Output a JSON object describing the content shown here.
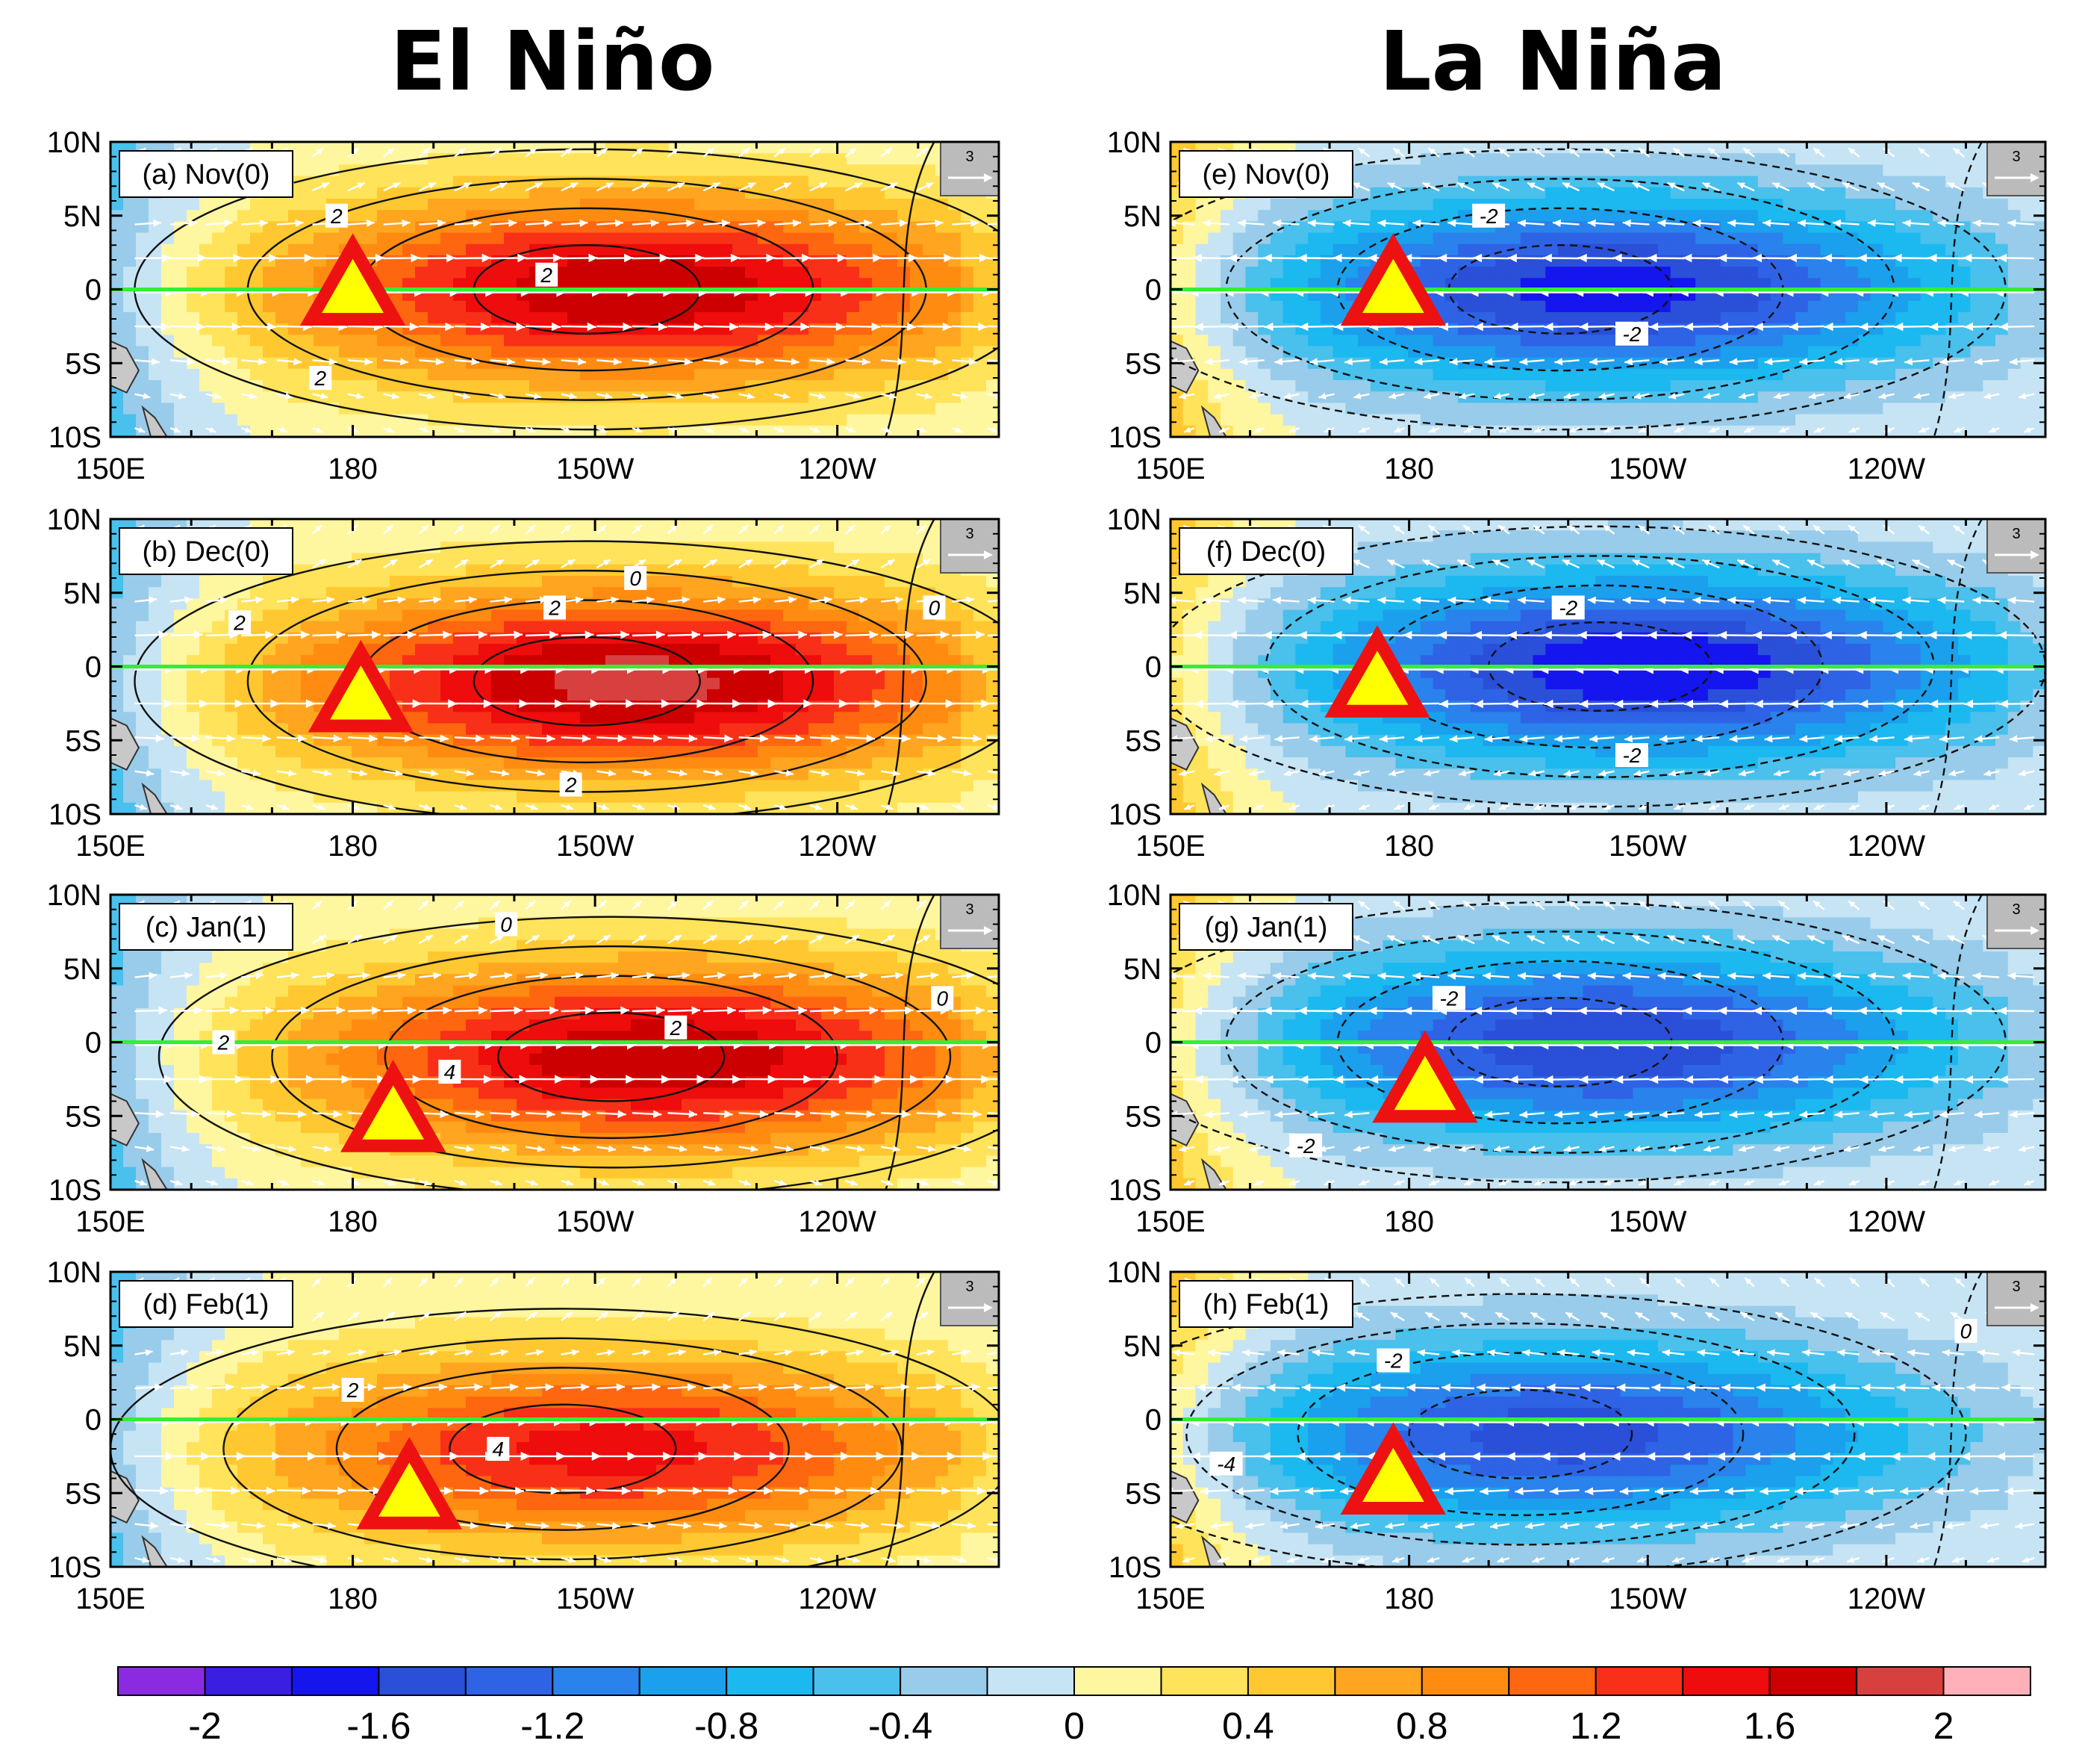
{
  "titles": {
    "left": "El Niño",
    "right": "La Niña"
  },
  "vector_reference": "3",
  "axes": {
    "lat_ticks": [
      "10N",
      "5N",
      "0",
      "5S",
      "10S"
    ],
    "lat_values": [
      10,
      5,
      0,
      -5,
      -10
    ],
    "lon_ticks": [
      "150E",
      "180",
      "150W",
      "120W"
    ],
    "lon_values": [
      150,
      180,
      210,
      240
    ],
    "lon_range": [
      150,
      260
    ],
    "lat_range": [
      -10,
      10
    ]
  },
  "colorbar": {
    "tick_labels": [
      "-2",
      "-1.6",
      "-1.2",
      "-0.8",
      "-0.4",
      "0",
      "0.4",
      "0.8",
      "1.2",
      "1.6",
      "2"
    ],
    "levels": [
      -2,
      -1.8,
      -1.6,
      -1.4,
      -1.2,
      -1.0,
      -0.8,
      -0.6,
      -0.4,
      -0.2,
      0,
      0.2,
      0.4,
      0.6,
      0.8,
      1.0,
      1.2,
      1.4,
      1.6,
      1.8,
      2
    ],
    "colors": [
      "#8a2be2",
      "#3a1fe0",
      "#1515ee",
      "#2a4fd8",
      "#2e63e6",
      "#2a82ec",
      "#1aa0ec",
      "#1cb8f0",
      "#4ac0ec",
      "#98ccea",
      "#c6e4f4",
      "#fff6a0",
      "#ffe35a",
      "#ffc830",
      "#ffa520",
      "#ff8c10",
      "#ff6610",
      "#f83018",
      "#ee0c0c",
      "#cc0000",
      "#d84040",
      "#ffb0b8"
    ]
  },
  "chart_data": [
    {
      "type": "heatmap",
      "id": "a",
      "label": "(a) Nov(0)",
      "phase": "El Niño",
      "triangle": {
        "lon": 180,
        "lat": 0
      },
      "anomaly_center": {
        "lon": 215,
        "lat": 0,
        "peak": 1.8
      },
      "contour_labels": [
        {
          "text": "2",
          "lon": 178,
          "lat": 5
        },
        {
          "text": "2",
          "lon": 204,
          "lat": 1
        },
        {
          "text": "2",
          "lon": 176,
          "lat": -6
        }
      ]
    },
    {
      "type": "heatmap",
      "id": "b",
      "label": "(b) Dec(0)",
      "phase": "El Niño",
      "triangle": {
        "lon": 181,
        "lat": -2
      },
      "anomaly_center": {
        "lon": 215,
        "lat": -1,
        "peak": 1.9
      },
      "contour_labels": [
        {
          "text": "0",
          "lon": 215,
          "lat": 6
        },
        {
          "text": "0",
          "lon": 252,
          "lat": 4
        },
        {
          "text": "2",
          "lon": 166,
          "lat": 3
        },
        {
          "text": "2",
          "lon": 205,
          "lat": 4
        },
        {
          "text": "2",
          "lon": 207,
          "lat": -8
        }
      ]
    },
    {
      "type": "heatmap",
      "id": "c",
      "label": "(c) Jan(1)",
      "phase": "El Niño",
      "triangle": {
        "lon": 185,
        "lat": -5
      },
      "anomaly_center": {
        "lon": 218,
        "lat": -1,
        "peak": 1.8
      },
      "contour_labels": [
        {
          "text": "0",
          "lon": 199,
          "lat": 8
        },
        {
          "text": "0",
          "lon": 253,
          "lat": 3
        },
        {
          "text": "2",
          "lon": 164,
          "lat": 0
        },
        {
          "text": "2",
          "lon": 220,
          "lat": 1
        },
        {
          "text": "4",
          "lon": 192,
          "lat": -2
        }
      ]
    },
    {
      "type": "heatmap",
      "id": "d",
      "label": "(d) Feb(1)",
      "phase": "El Niño",
      "triangle": {
        "lon": 187,
        "lat": -5
      },
      "anomaly_center": {
        "lon": 212,
        "lat": -2,
        "peak": 1.5
      },
      "contour_labels": [
        {
          "text": "2",
          "lon": 180,
          "lat": 2
        },
        {
          "text": "4",
          "lon": 198,
          "lat": -2
        }
      ]
    },
    {
      "type": "heatmap",
      "id": "e",
      "label": "(e) Nov(0)",
      "phase": "La Niña",
      "triangle": {
        "lon": 178,
        "lat": 0
      },
      "anomaly_center": {
        "lon": 205,
        "lat": 0,
        "peak": -1.7
      },
      "contour_labels": [
        {
          "text": "-2",
          "lon": 190,
          "lat": 5
        },
        {
          "text": "-2",
          "lon": 208,
          "lat": -3
        }
      ]
    },
    {
      "type": "heatmap",
      "id": "f",
      "label": "(f) Dec(0)",
      "phase": "La Niña",
      "triangle": {
        "lon": 176,
        "lat": -1
      },
      "anomaly_center": {
        "lon": 210,
        "lat": 0,
        "peak": -1.8
      },
      "contour_labels": [
        {
          "text": "-2",
          "lon": 200,
          "lat": 4
        },
        {
          "text": "-2",
          "lon": 208,
          "lat": -6
        }
      ]
    },
    {
      "type": "heatmap",
      "id": "g",
      "label": "(g) Jan(1)",
      "phase": "La Niña",
      "triangle": {
        "lon": 182,
        "lat": -3
      },
      "anomaly_center": {
        "lon": 205,
        "lat": 0,
        "peak": -1.6
      },
      "contour_labels": [
        {
          "text": "-2",
          "lon": 185,
          "lat": 3
        },
        {
          "text": "-2",
          "lon": 167,
          "lat": -7
        }
      ]
    },
    {
      "type": "heatmap",
      "id": "h",
      "label": "(h) Feb(1)",
      "phase": "La Niña",
      "triangle": {
        "lon": 178,
        "lat": -4
      },
      "anomaly_center": {
        "lon": 200,
        "lat": -1,
        "peak": -1.5
      },
      "contour_labels": [
        {
          "text": "-2",
          "lon": 178,
          "lat": 4
        },
        {
          "text": "0",
          "lon": 250,
          "lat": 6
        },
        {
          "text": "-4",
          "lon": 157,
          "lat": -3
        }
      ]
    }
  ]
}
